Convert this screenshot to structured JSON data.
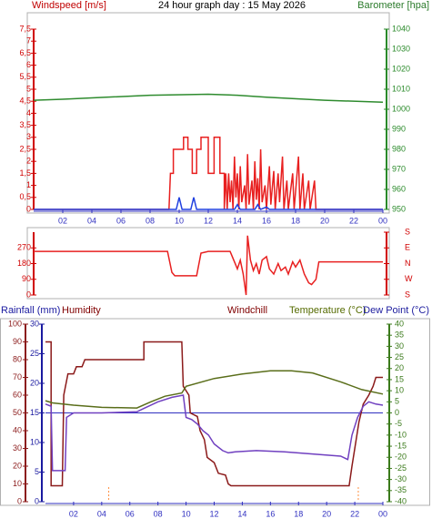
{
  "chart_data": [
    {
      "type": "line",
      "title": "24 hour graph day : 15 May 2026",
      "y_label": "Windspeed [m/s]",
      "y2_label": "Barometer [hpa]",
      "xlim": [
        0,
        24
      ],
      "xticks": [
        {
          "value": 2,
          "label": "02"
        },
        {
          "value": 4,
          "label": "04"
        },
        {
          "value": 6,
          "label": "06"
        },
        {
          "value": 8,
          "label": "08"
        },
        10,
        12,
        14,
        16,
        18,
        20,
        22,
        {
          "value": 24,
          "label": "00"
        }
      ],
      "ylim": [
        0,
        7.5
      ],
      "yticks": [
        0,
        {
          "value": 0.5,
          "label": "0,5"
        },
        1,
        {
          "value": 1.5,
          "label": "1,5"
        },
        2,
        {
          "value": 2.5,
          "label": "2,5"
        },
        3,
        {
          "value": 3.5,
          "label": "3,5"
        },
        4,
        {
          "value": 4.5,
          "label": "4,5"
        },
        5,
        {
          "value": 5.5,
          "label": "5,5"
        },
        6,
        {
          "value": 6.5,
          "label": "6,5"
        },
        7,
        {
          "value": 7.5,
          "label": "7,5"
        }
      ],
      "y2lim": [
        950,
        1040
      ],
      "y2ticks": [
        950,
        960,
        970,
        980,
        990,
        1000,
        1010,
        1020,
        1030,
        1040
      ],
      "series": [
        {
          "color": "#2e8b2e",
          "axis": "y2",
          "x": [
            0,
            2,
            5,
            8,
            12,
            14,
            16,
            20,
            24
          ],
          "values": [
            1004.5,
            1005,
            1006,
            1007,
            1007.5,
            1007,
            1006,
            1004.5,
            1003.5
          ]
        },
        {
          "color": "#e82020",
          "x": [
            0,
            9.3,
            9.4,
            9.6,
            9.6,
            10.3,
            10.3,
            10.6,
            10.6,
            10.9,
            10.9,
            11.2,
            11.2,
            11.5,
            11.5,
            12.0,
            12.0,
            12.4,
            12.4,
            12.8,
            12.8,
            13.1,
            13.1,
            13.2,
            13.3,
            13.4,
            13.5,
            13.6,
            13.7,
            13.8,
            13.9,
            14.0,
            14.1,
            14.2,
            14.3,
            14.5,
            14.6,
            14.7,
            14.8,
            15.0,
            15.1,
            15.2,
            15.3,
            15.4,
            15.5,
            15.6,
            15.7,
            15.9,
            16.0,
            16.2,
            16.3,
            16.5,
            16.6,
            16.8,
            16.9,
            17.1,
            17.2,
            17.4,
            17.5,
            17.8,
            17.9,
            18.2,
            18.3,
            18.5,
            18.6,
            18.9,
            19.0,
            19.3,
            19.4,
            24
          ],
          "values": [
            0,
            0,
            1.5,
            1.5,
            2.5,
            2.5,
            3,
            3,
            2.5,
            2.5,
            1.5,
            1.5,
            2.5,
            2.5,
            3,
            3,
            1.5,
            1.5,
            3,
            3,
            1.5,
            1.5,
            0,
            1.5,
            0,
            1.5,
            0.3,
            1.2,
            0,
            2.2,
            0.5,
            1.5,
            0,
            1.8,
            0.3,
            1.0,
            0,
            2.3,
            0.2,
            1.2,
            0,
            2.0,
            0.4,
            1.3,
            0,
            2.5,
            0.3,
            1.0,
            0,
            1.8,
            0.2,
            1.6,
            0,
            1.5,
            0.3,
            2.2,
            0,
            1.2,
            0,
            1.5,
            0,
            2.2,
            0,
            1.5,
            0,
            1.2,
            0,
            1.2,
            0,
            0
          ]
        },
        {
          "color": "#2040e0",
          "x": [
            0,
            9.8,
            10,
            10.2,
            10.8,
            11,
            11.2,
            13.8,
            14,
            14.2,
            15.2,
            15.4,
            15.6,
            16,
            16.2,
            24
          ],
          "values": [
            0,
            0,
            0.5,
            0,
            0,
            0.5,
            0,
            0,
            0.2,
            0,
            0,
            0.2,
            0,
            0.1,
            0,
            0
          ]
        }
      ]
    },
    {
      "type": "line",
      "xlim": [
        0,
        24
      ],
      "ylim": [
        0,
        360
      ],
      "yticks": [
        0,
        90,
        180,
        270
      ],
      "y2lim": [
        0,
        360
      ],
      "y2ticks": [
        {
          "value": 0,
          "label": "S"
        },
        {
          "value": 90,
          "label": "W"
        },
        {
          "value": 180,
          "label": "N"
        },
        {
          "value": 270,
          "label": "E"
        },
        {
          "value": 360,
          "label": "S"
        }
      ],
      "series": [
        {
          "color": "#e82020",
          "x": [
            0,
            9.2,
            9.5,
            9.7,
            11.2,
            11.5,
            12.0,
            13.5,
            13.8,
            14.0,
            14.2,
            14.4,
            14.6,
            14.7,
            14.9,
            15.1,
            15.3,
            15.5,
            15.7,
            16.0,
            16.2,
            16.5,
            16.8,
            17.0,
            17.3,
            17.5,
            17.8,
            18.0,
            18.3,
            18.6,
            18.9,
            19.1,
            19.4,
            19.6,
            24
          ],
          "values": [
            250,
            250,
            130,
            110,
            110,
            240,
            250,
            250,
            190,
            150,
            200,
            120,
            0,
            340,
            200,
            140,
            180,
            120,
            200,
            220,
            150,
            120,
            180,
            140,
            160,
            120,
            190,
            160,
            200,
            120,
            70,
            60,
            90,
            190,
            190
          ]
        }
      ]
    },
    {
      "type": "line",
      "rain_label": "Rainfall (mm)",
      "windchill_label": "Windchill",
      "xlim": [
        0,
        24
      ],
      "xticks": [
        {
          "value": 2,
          "label": "02"
        },
        {
          "value": 4,
          "label": "04"
        },
        {
          "value": 6,
          "label": "06"
        },
        {
          "value": 8,
          "label": "08"
        },
        10,
        12,
        14,
        16,
        18,
        20,
        22,
        {
          "value": 24,
          "label": "00"
        }
      ],
      "ylim": [
        0,
        100
      ],
      "yticks": [
        0,
        10,
        20,
        30,
        40,
        50,
        60,
        70,
        80,
        90,
        100
      ],
      "y3lim": [
        0,
        30
      ],
      "y3ticks": [
        0,
        5,
        10,
        15,
        20,
        25,
        30
      ],
      "y2lim": [
        -40,
        40
      ],
      "y2ticks": [
        -40,
        -35,
        -30,
        -25,
        -20,
        -15,
        -10,
        -5,
        0,
        5,
        10,
        15,
        20,
        25,
        30,
        35,
        40
      ],
      "reference_line": 0,
      "markers_x": [
        4.5,
        22.25
      ],
      "series": [
        {
          "name": "Humidity",
          "color": "#8b1a1a",
          "x": [
            0,
            0.4,
            0.4,
            1.2,
            1.3,
            1.6,
            2.0,
            2.2,
            2.6,
            2.8,
            7.0,
            7.0,
            9.7,
            9.8,
            10.2,
            10.3,
            10.8,
            11.0,
            11.3,
            11.5,
            12.0,
            12.3,
            12.8,
            13.0,
            13.2,
            21.6,
            21.8,
            22.0,
            22.3,
            22.6,
            23.0,
            23.3,
            23.5,
            24
          ],
          "values": [
            90,
            90,
            9,
            9,
            60,
            72,
            72,
            76,
            76,
            80,
            80,
            90,
            90,
            65,
            60,
            50,
            48,
            40,
            35,
            25,
            22,
            16,
            15,
            10,
            9,
            9,
            20,
            30,
            45,
            55,
            60,
            65,
            70,
            70
          ]
        },
        {
          "name": "Temperature (°C)",
          "color": "#5a6e1a",
          "axis": "y2",
          "x": [
            0,
            0.5,
            2,
            4,
            6.5,
            7.5,
            8.5,
            9.7,
            10,
            12,
            14,
            16,
            17.5,
            19,
            21,
            22.5,
            24
          ],
          "values": [
            5.5,
            4.5,
            3.5,
            2.5,
            2.2,
            5,
            7.5,
            9,
            12,
            15.5,
            17.5,
            19,
            19,
            18,
            14,
            10.5,
            8.5
          ]
        },
        {
          "name": "Dew Point (°C)",
          "color": "#7040c0",
          "axis": "y2",
          "x": [
            0,
            0.4,
            0.5,
            1.4,
            1.5,
            2,
            4,
            6.5,
            7,
            8,
            9,
            9.8,
            10,
            10.4,
            10.8,
            11.2,
            11.6,
            12,
            12.6,
            13,
            13.5,
            15,
            17,
            19,
            21,
            21.5,
            21.8,
            22.2,
            22.6,
            23,
            23.5,
            24
          ],
          "values": [
            4,
            3,
            -26,
            -26,
            -2,
            0,
            0,
            0.5,
            2,
            5,
            7,
            8,
            -2,
            -3,
            -5,
            -8,
            -10,
            -14,
            -17,
            -18,
            -17.5,
            -17,
            -17.5,
            -18.5,
            -19.5,
            -21,
            -10,
            -2,
            3,
            5,
            4,
            3.5
          ]
        }
      ]
    }
  ]
}
